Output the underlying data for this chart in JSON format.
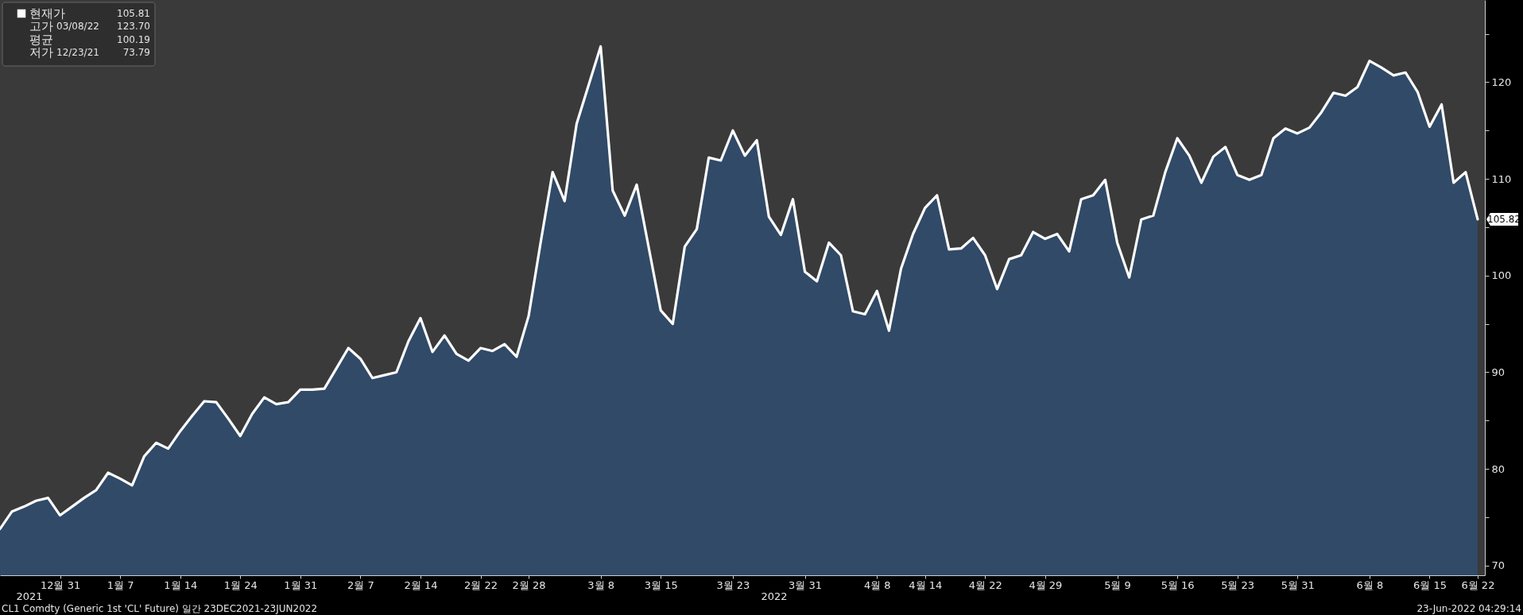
{
  "chart_data": {
    "type": "area",
    "categories": [
      null,
      null,
      null,
      null,
      null,
      "12월 31",
      null,
      null,
      null,
      null,
      "1월 7",
      null,
      null,
      null,
      null,
      "1월 14",
      null,
      null,
      null,
      null,
      "1월 24",
      null,
      null,
      null,
      null,
      "1월 31",
      null,
      null,
      null,
      null,
      "2월 7",
      null,
      null,
      null,
      null,
      "2월 14",
      null,
      null,
      null,
      null,
      "2월 22",
      null,
      null,
      null,
      "2월 28",
      null,
      null,
      null,
      null,
      null,
      "3월 8",
      null,
      null,
      null,
      null,
      "3월 15",
      null,
      null,
      null,
      null,
      null,
      "3월 23",
      null,
      null,
      null,
      null,
      null,
      "3월 31",
      null,
      null,
      null,
      null,
      null,
      "4월 8",
      null,
      null,
      null,
      "4월 14",
      null,
      null,
      null,
      null,
      "4월 22",
      null,
      null,
      null,
      null,
      "4월 29",
      null,
      null,
      null,
      null,
      null,
      "5월 9",
      null,
      null,
      null,
      null,
      "5월 16",
      null,
      null,
      null,
      null,
      "5월 23",
      null,
      null,
      null,
      null,
      "5월 31",
      null,
      null,
      null,
      null,
      null,
      "6월 8",
      null,
      null,
      null,
      null,
      "6월 15",
      null,
      null,
      null,
      "6월 22"
    ],
    "series": [
      {
        "name": "현재가",
        "color": "#ffffff",
        "values": [
          73.79,
          75.6,
          76.1,
          76.7,
          77.0,
          75.2,
          76.1,
          77.0,
          77.8,
          79.6,
          79.0,
          78.3,
          81.3,
          82.7,
          82.1,
          83.9,
          85.5,
          87.0,
          86.9,
          85.2,
          83.4,
          85.7,
          87.4,
          86.7,
          86.9,
          88.2,
          88.2,
          88.3,
          90.4,
          92.5,
          91.4,
          89.4,
          89.7,
          90.0,
          93.2,
          95.6,
          92.1,
          93.8,
          91.9,
          91.2,
          92.5,
          92.2,
          92.9,
          91.6,
          95.8,
          103.4,
          110.7,
          107.7,
          115.7,
          119.7,
          123.7,
          108.8,
          106.2,
          109.4,
          102.9,
          96.4,
          95.0,
          103.0,
          104.8,
          112.2,
          111.9,
          115.0,
          112.4,
          114.0,
          106.1,
          104.2,
          107.9,
          100.4,
          99.4,
          103.4,
          102.1,
          96.3,
          96.0,
          98.4,
          94.3,
          100.7,
          104.3,
          107.0,
          108.3,
          102.7,
          102.8,
          103.9,
          102.1,
          98.6,
          101.7,
          102.1,
          104.5,
          103.8,
          104.3,
          102.5,
          107.9,
          108.3,
          109.9,
          103.4,
          99.8,
          105.8,
          106.2,
          110.7,
          114.2,
          112.4,
          109.6,
          112.3,
          113.3,
          110.4,
          109.9,
          110.4,
          114.2,
          115.2,
          114.7,
          115.3,
          116.9,
          118.9,
          118.6,
          119.5,
          122.2,
          121.5,
          120.7,
          121.0,
          119.0,
          115.4,
          117.7,
          109.6,
          110.7,
          105.82
        ],
        "value_labels": [
          null,
          null,
          null,
          null,
          null,
          null,
          null,
          null,
          null,
          null,
          null,
          null,
          null,
          null,
          null,
          null,
          null,
          null,
          null,
          null,
          null,
          null,
          null,
          null,
          null,
          null,
          null,
          null,
          null,
          null,
          null,
          null,
          null,
          null,
          null,
          null,
          null,
          null,
          null,
          null,
          null,
          null,
          null,
          null,
          null,
          null,
          null,
          null,
          null,
          null,
          null,
          null,
          null,
          null,
          null,
          null,
          null,
          null,
          null,
          null,
          null,
          null,
          null,
          null,
          null,
          null,
          null,
          null,
          null,
          null,
          null,
          null,
          null,
          null,
          null,
          null,
          null,
          null,
          null,
          null,
          null,
          null,
          null,
          null,
          null,
          null,
          null,
          null,
          null,
          null,
          null,
          null,
          null,
          null,
          null,
          null,
          null,
          null,
          null,
          null,
          null,
          null,
          null,
          null,
          null,
          null,
          null,
          null,
          null,
          null,
          null,
          null,
          null,
          null,
          null,
          null,
          null,
          null,
          null,
          null,
          null,
          null,
          null,
          "105.82"
        ]
      }
    ],
    "ylim": [
      69,
      128.5
    ],
    "yticks": [
      70,
      {
        "value": 75,
        "label": null
      },
      80,
      {
        "value": 85,
        "label": null
      },
      90,
      {
        "value": 95,
        "label": null
      },
      100,
      {
        "value": 105,
        "label": null
      },
      110,
      {
        "value": 115,
        "label": null
      },
      120,
      {
        "value": 125,
        "label": null
      }
    ],
    "legend": "top left",
    "annotations": [
      "105.81",
      "고가 03/08/22 123.70",
      "평균 100.19",
      "저가 12/23/21 73.79",
      "2021",
      "2022",
      "CL1 Comdty (Generic 1st 'CL' Future)  일간 23DEC2021-23JUN2022",
      "23-Jun-2022 04:29:14"
    ]
  }
}
